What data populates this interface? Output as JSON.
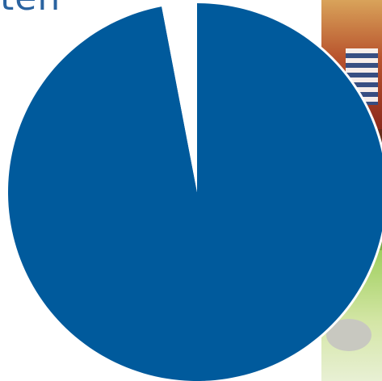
{
  "title_fragment": "ten",
  "colors": {
    "slice_main": "#005a9c",
    "slice_small": "#ffffff",
    "outline": "#ffffff"
  },
  "chart_data": {
    "type": "pie",
    "title": "",
    "start": "top",
    "direction": "clockwise",
    "slices": [
      {
        "value": 97,
        "color": "#005a9c"
      },
      {
        "value": 3,
        "color": "#ffffff"
      }
    ]
  }
}
